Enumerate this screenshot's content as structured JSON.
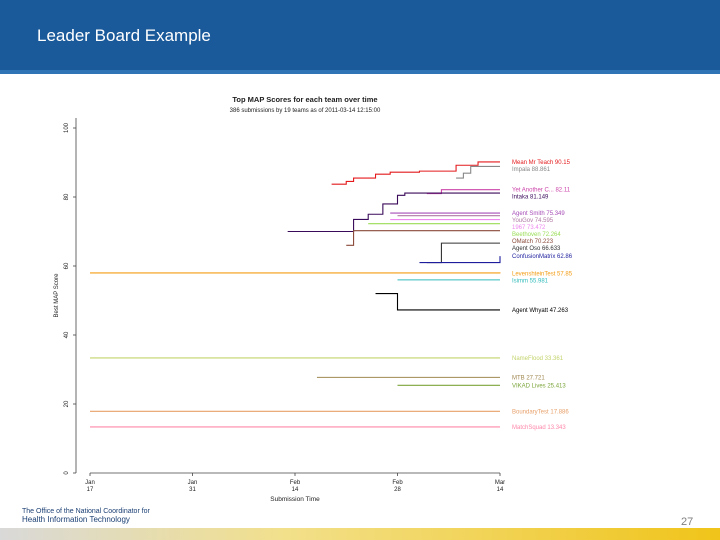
{
  "slide": {
    "title": "Leader Board Example",
    "page_number": "27",
    "logo_line1": "The Office of the National Coordinator for",
    "logo_line2": "Health Information Technology"
  },
  "colors": {
    "header": "#1b5a9a",
    "accent_bar": "#f0c419"
  },
  "chart_data": {
    "type": "line",
    "title": "Top MAP Scores for each team over time",
    "subtitle": "386 submissions by 19 teams as of  2011-03-14 12:15:00",
    "xlabel": "Submission Time",
    "ylabel": "Best MAP Score",
    "xlim": [
      0,
      56
    ],
    "ylim": [
      0,
      100
    ],
    "x_note": "x values are days since Jan 17",
    "x_ticks": [
      {
        "day": 0,
        "line1": "Jan",
        "line2": "17"
      },
      {
        "day": 14,
        "line1": "Jan",
        "line2": "31"
      },
      {
        "day": 28,
        "line1": "Feb",
        "line2": "14"
      },
      {
        "day": 42,
        "line1": "Feb",
        "line2": "28"
      },
      {
        "day": 56,
        "line1": "Mar",
        "line2": "14"
      }
    ],
    "y_ticks": [
      0,
      20,
      40,
      60,
      80,
      100
    ],
    "series": [
      {
        "name": "Mean Mr Teach",
        "final": "90.15",
        "label": "Mean Mr Teach 90.15",
        "color": "#e41a1c",
        "steps": [
          [
            33,
            83.7
          ],
          [
            35,
            84.5
          ],
          [
            36,
            85.5
          ],
          [
            39,
            86.6
          ],
          [
            41,
            87.2
          ],
          [
            45,
            87.5
          ],
          [
            50,
            89.2
          ],
          [
            53,
            90.15
          ],
          [
            56,
            90.15
          ]
        ]
      },
      {
        "name": "Impala",
        "final": "88.861",
        "label": "Impala 88.861",
        "color": "#888888",
        "steps": [
          [
            50,
            85.5
          ],
          [
            51,
            86.9
          ],
          [
            52,
            88.861
          ],
          [
            56,
            88.861
          ]
        ]
      },
      {
        "name": "Yet Another C...",
        "final": "82.11",
        "label": "Yet Another C... 82.11",
        "color": "#cc44aa",
        "steps": [
          [
            46,
            81
          ],
          [
            48,
            82.11
          ],
          [
            56,
            82.11
          ]
        ]
      },
      {
        "name": "Intaka",
        "final": "81.149",
        "label": "Intaka 81.149",
        "color": "#3a0a5a",
        "steps": [
          [
            27,
            70
          ],
          [
            36,
            73.5
          ],
          [
            38,
            75
          ],
          [
            40,
            78
          ],
          [
            42,
            80.5
          ],
          [
            43,
            81.149
          ],
          [
            56,
            81.149
          ]
        ]
      },
      {
        "name": "Agent Smith",
        "final": "75.349",
        "label": "Agent Smith 75.349",
        "color": "#a64db7",
        "steps": [
          [
            41,
            75.349
          ],
          [
            56,
            75.349
          ]
        ]
      },
      {
        "name": "YouGov",
        "final": "74.595",
        "label": "YouGov 74.595",
        "color": "#b07aa6",
        "steps": [
          [
            42,
            74.595
          ],
          [
            56,
            74.595
          ]
        ]
      },
      {
        "name": "1967",
        "final": "73.472",
        "label": "1967 73.472",
        "color": "#ee88ee",
        "steps": [
          [
            41,
            73.472
          ],
          [
            56,
            73.472
          ]
        ]
      },
      {
        "name": "Beethoven",
        "final": "72.264",
        "label": "Beethoven 72.264",
        "color": "#99dd55",
        "steps": [
          [
            38,
            72.264
          ],
          [
            56,
            72.264
          ]
        ]
      },
      {
        "name": "OMatch",
        "final": "70.223",
        "label": "OMatch 70.223",
        "color": "#8a4a3a",
        "steps": [
          [
            35,
            66
          ],
          [
            36,
            70.223
          ],
          [
            56,
            70.223
          ]
        ]
      },
      {
        "name": "Agent Oso",
        "final": "66.633",
        "label": "Agent Oso 66.633",
        "color": "#333333",
        "steps": [
          [
            46,
            61
          ],
          [
            48,
            66.633
          ],
          [
            56,
            66.633
          ]
        ]
      },
      {
        "name": "ConfusionMatrix",
        "final": "62.86",
        "label": "ConfusionMatrix 62.86",
        "color": "#1d1d9e",
        "steps": [
          [
            45,
            61
          ],
          [
            56,
            62.86
          ]
        ]
      },
      {
        "name": "LevenshteinTest",
        "final": "57.85",
        "label": "LevenshteinTest 57.85",
        "color": "#f39c12",
        "steps": [
          [
            0,
            58
          ],
          [
            56,
            57.85
          ]
        ]
      },
      {
        "name": "Isimm",
        "final": "55.981",
        "label": "Isimm 55.981",
        "color": "#33bbbb",
        "steps": [
          [
            42,
            55.981
          ],
          [
            56,
            55.981
          ]
        ]
      },
      {
        "name": "Agent Whyatt",
        "final": "47.263",
        "label": "Agent Whyatt 47.263",
        "color": "#000000",
        "steps": [
          [
            39,
            52
          ],
          [
            42,
            47.263
          ],
          [
            56,
            47.263
          ]
        ]
      },
      {
        "name": "NameFlood",
        "final": "33.361",
        "label": "NameFlood 33.361",
        "color": "#c2d46b",
        "steps": [
          [
            0,
            33.361
          ],
          [
            56,
            33.361
          ]
        ]
      },
      {
        "name": "MTB",
        "final": "27.721",
        "label": "MTB 27.721",
        "color": "#a08850",
        "steps": [
          [
            31,
            27.721
          ],
          [
            56,
            27.721
          ]
        ]
      },
      {
        "name": "VIKAD Lives",
        "final": "25.413",
        "label": "VIKAD Lives 25.413",
        "color": "#7ba53a",
        "steps": [
          [
            42,
            25.413
          ],
          [
            56,
            25.413
          ]
        ]
      },
      {
        "name": "BoundaryTest",
        "final": "17.886",
        "label": "BoundaryTest 17.886",
        "color": "#e8a06a",
        "steps": [
          [
            0,
            17.886
          ],
          [
            56,
            17.886
          ]
        ]
      },
      {
        "name": "MatchSquad",
        "final": "13.343",
        "label": "MatchSquad 13.343",
        "color": "#ff88aa",
        "steps": [
          [
            0,
            13.343
          ],
          [
            56,
            13.343
          ]
        ]
      }
    ]
  }
}
